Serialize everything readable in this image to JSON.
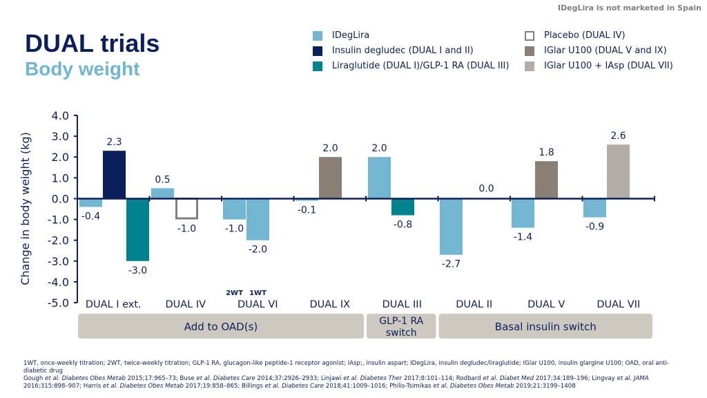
{
  "disclaimer": "IDegLira is not marketed in Spain",
  "title": "DUAL trials",
  "subtitle": "Body weight",
  "colors": {
    "ideglira": "#72b6d2",
    "degludec": "#0a1f5c",
    "liraglutide": "#00838f",
    "placebo": "#7f7f7f",
    "glar_v_ix": "#8a7f74",
    "glar_vii": "#b3ada7",
    "group_box": "#cdc9c1",
    "axis": "#0a1f5c"
  },
  "legend": [
    {
      "label": "IDegLira",
      "color_key": "ideglira",
      "hollow": false
    },
    {
      "label": "Insulin degludec (DUAL I and II)",
      "color_key": "degludec",
      "hollow": false
    },
    {
      "label": "Liraglutide (DUAL I)/GLP-1 RA (DUAL III)",
      "color_key": "liraglutide",
      "hollow": false
    },
    {
      "label": "Placebo (DUAL IV)",
      "color_key": "placebo",
      "hollow": true
    },
    {
      "label": "IGlar U100 (DUAL V and IX)",
      "color_key": "glar_v_ix",
      "hollow": false
    },
    {
      "label": "IGlar U100 + IAsp (DUAL VII)",
      "color_key": "glar_vii",
      "hollow": false
    }
  ],
  "chart_data": {
    "type": "bar",
    "ylabel": "Change in body weight (kg)",
    "ylim": [
      -5.0,
      4.0
    ],
    "yticks": [
      "4.0",
      "3.0",
      "2.0",
      "1.0",
      "0.0",
      "-1.0",
      "-2.0",
      "-3.0",
      "-4.0",
      "-5.0"
    ],
    "categories": [
      "DUAL I ext.",
      "DUAL IV",
      "DUAL VI",
      "DUAL IX",
      "DUAL III",
      "DUAL II",
      "DUAL V",
      "DUAL VII"
    ],
    "bars": [
      {
        "category": 0,
        "series": "ideglira",
        "value": -0.4,
        "label": "-0.4"
      },
      {
        "category": 0,
        "series": "degludec",
        "value": 2.3,
        "label": "2.3"
      },
      {
        "category": 0,
        "series": "liraglutide",
        "value": -3.0,
        "label": "-3.0"
      },
      {
        "category": 1,
        "series": "ideglira",
        "value": 0.5,
        "label": "0.5"
      },
      {
        "category": 1,
        "series": "placebo",
        "value": -1.0,
        "label": "-1.0",
        "hollow": true
      },
      {
        "category": 2,
        "series": "ideglira",
        "value": -1.0,
        "label": "-1.0",
        "sublabel": "2WT"
      },
      {
        "category": 2,
        "series": "ideglira",
        "value": -2.0,
        "label": "-2.0",
        "sublabel": "1WT"
      },
      {
        "category": 3,
        "series": "ideglira",
        "value": -0.1,
        "label": "-0.1"
      },
      {
        "category": 3,
        "series": "glar_v_ix",
        "value": 2.0,
        "label": "2.0"
      },
      {
        "category": 4,
        "series": "ideglira",
        "value": 2.0,
        "label": "2.0"
      },
      {
        "category": 4,
        "series": "liraglutide",
        "value": -0.8,
        "label": "-0.8"
      },
      {
        "category": 5,
        "series": "ideglira",
        "value": -2.7,
        "label": "-2.7"
      },
      {
        "category": 5,
        "series": "degludec",
        "value": 0.0,
        "label": "0.0"
      },
      {
        "category": 6,
        "series": "ideglira",
        "value": -1.4,
        "label": "-1.4"
      },
      {
        "category": 6,
        "series": "glar_v_ix",
        "value": 1.8,
        "label": "1.8"
      },
      {
        "category": 7,
        "series": "ideglira",
        "value": -0.9,
        "label": "-0.9"
      },
      {
        "category": 7,
        "series": "glar_vii",
        "value": 2.6,
        "label": "2.6"
      }
    ],
    "groups": [
      {
        "label": "Add to OAD(s)",
        "from": 0,
        "to": 3
      },
      {
        "label": "GLP-1 RA switch",
        "from": 4,
        "to": 4
      },
      {
        "label": "Basal insulin switch",
        "from": 5,
        "to": 7
      }
    ]
  },
  "footnotes": {
    "line1": "1WT, once-weekly titration; 2WT, twice-weekly titration; GLP-1 RA, glucagon-like peptide-1 receptor agonist; IAsp;, insulin aspart; IDegLira, insulin degludec/liraglutide; IGlar U100, insulin glargine U100; OAD, oral anti-diabetic drug",
    "refs": [
      {
        "pre": "Gough ",
        "journal": "et al. Diabetes Obes Metab",
        "post": " 2015;17:965–73; "
      },
      {
        "pre": "Buse ",
        "journal": "et al. Diabetes Care",
        "post": " 2014;37:2926–2933"
      },
      {
        "pre": "; Linjawi ",
        "journal": "et al. Diabetes Ther",
        "post": " 2017;8:101–114; "
      },
      {
        "pre": "Rodbard ",
        "journal": "et al. Diabet Med",
        "post": " 2017;34:189–196; "
      },
      {
        "pre": "Lingvay ",
        "journal": "et al. JAMA",
        "post": " 2016;315:898–907; "
      },
      {
        "pre": "Harris ",
        "journal": "et al. Diabetes Obes Metab",
        "post": " 2017;19:858–865; "
      },
      {
        "pre": "Billings ",
        "journal": "et al. Diabetes Care",
        "post": " 2018;41:1009–1016; "
      },
      {
        "pre": "Philis-Tsimikas ",
        "journal": "et al. Diabetes Obes Metab",
        "post": " 2019;21:3199–1408"
      }
    ]
  }
}
